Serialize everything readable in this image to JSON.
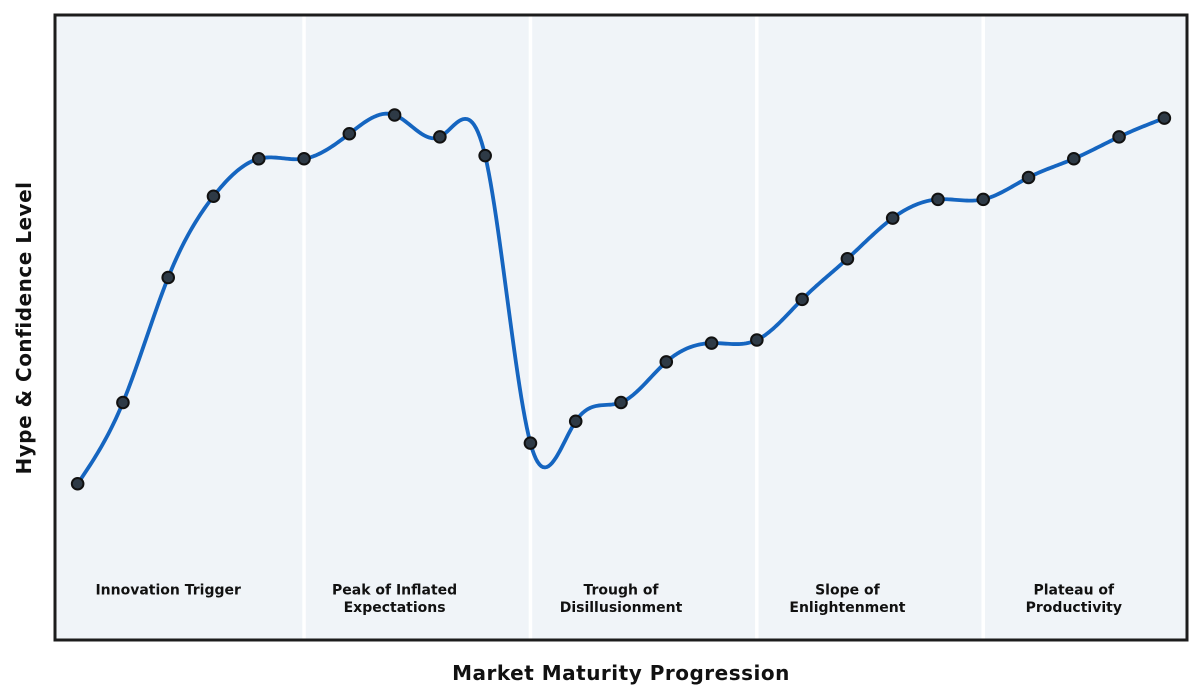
{
  "figure": {
    "background": "#ffffff"
  },
  "chart_data": {
    "type": "line",
    "title": "",
    "xlabel": "Market Maturity Progression",
    "ylabel": "Hype & Confidence Level",
    "x": [
      0,
      1,
      2,
      3,
      4,
      5,
      6,
      7,
      8,
      9,
      10,
      11,
      12,
      13,
      14,
      15,
      16,
      17,
      18,
      19,
      20,
      21,
      22,
      23,
      24
    ],
    "series": [
      {
        "name": "Hype & Confidence Level",
        "values": [
          25,
          38,
          58,
          71,
          77,
          77,
          81,
          84,
          80.5,
          77.5,
          31.5,
          35,
          38,
          44.5,
          47.5,
          48,
          54.5,
          61,
          67.5,
          70.5,
          70.5,
          74,
          77,
          80.5,
          83.5
        ]
      }
    ],
    "xlim": [
      -0.5,
      24.5
    ],
    "ylim": [
      0,
      100
    ],
    "grid": false,
    "legend": "none",
    "curve": "smooth-cubic-spline",
    "marker": "circle",
    "phases": [
      {
        "label": "Innovation Trigger",
        "lines": [
          "Innovation Trigger"
        ],
        "center_x": 2
      },
      {
        "label": "Peak of Inflated Expectations",
        "lines": [
          "Peak of Inflated",
          "Expectations"
        ],
        "center_x": 7
      },
      {
        "label": "Trough of Disillusionment",
        "lines": [
          "Trough of",
          "Disillusionment"
        ],
        "center_x": 12
      },
      {
        "label": "Slope of Enlightenment",
        "lines": [
          "Slope of",
          "Enlightenment"
        ],
        "center_x": 17
      },
      {
        "label": "Plateau of Productivity",
        "lines": [
          "Plateau of",
          "Productivity"
        ],
        "center_x": 22
      }
    ],
    "phase_dividers_x": [
      5,
      10,
      15,
      20
    ],
    "colors": {
      "line": "#1565c0",
      "marker_fill": "#2e3a46",
      "marker_edge": "#111111",
      "plot_background": "#f0f4f8",
      "divider": "#ffffff",
      "border": "#1c1c1c",
      "label_text": "#111111"
    }
  }
}
